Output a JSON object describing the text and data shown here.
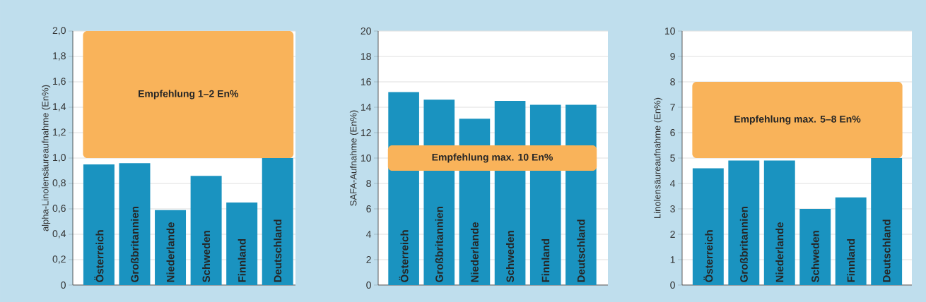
{
  "chart_data": [
    {
      "type": "bar",
      "ylabel": "alpha-Linolensäureaufnahme (En%)",
      "categories": [
        "Österreich",
        "Großbritannien",
        "Niederlande",
        "Schweden",
        "Finnland",
        "Deutschland"
      ],
      "values": [
        0.95,
        0.96,
        0.59,
        0.86,
        0.65,
        1.0
      ],
      "color": "#1a93c0",
      "ylim": [
        0,
        2
      ],
      "yticks": [
        0,
        {
          "value": 0.2,
          "label": "0,2"
        },
        {
          "value": 0.4,
          "label": "0,4"
        },
        {
          "value": 0.6,
          "label": "0,6"
        },
        {
          "value": 0.8,
          "label": "0,8"
        },
        {
          "value": 1.0,
          "label": "1,0"
        },
        {
          "value": 1.2,
          "label": "1,2"
        },
        {
          "value": 1.4,
          "label": "1,4"
        },
        {
          "value": 1.6,
          "label": "1,6"
        },
        {
          "value": 1.8,
          "label": "1,8"
        },
        {
          "value": 2.0,
          "label": "2,0"
        }
      ],
      "grid": "y",
      "bands": [
        {
          "axis": "y",
          "from": 1,
          "to": 2,
          "label": "Empfehlung 1–2 En%",
          "color": "#f9b35a"
        }
      ]
    },
    {
      "type": "bar",
      "ylabel": "SAFA-Aufnahme (En%)",
      "categories": [
        "Österreich",
        "Großbritannien",
        "Niederlande",
        "Schweden",
        "Finnland",
        "Deutschland"
      ],
      "values": [
        15.2,
        14.6,
        13.1,
        14.5,
        14.2,
        14.2
      ],
      "color": "#1a93c0",
      "ylim": [
        0,
        20
      ],
      "yticks": [
        0,
        2,
        4,
        6,
        8,
        10,
        12,
        14,
        16,
        18,
        20
      ],
      "grid": "y",
      "bands": [
        {
          "axis": "y",
          "from": 9,
          "to": 11,
          "label": "Empfehlung max. 10 En%",
          "color": "#f9b35a"
        }
      ]
    },
    {
      "type": "bar",
      "ylabel": "Linolensäureaufnahme (En%)",
      "categories": [
        "Österreich",
        "Großbritannien",
        "Niederlande",
        "Schweden",
        "Finnland",
        "Deutschland"
      ],
      "values": [
        4.6,
        4.9,
        4.9,
        3.0,
        3.45,
        5.0
      ],
      "color": "#1a93c0",
      "ylim": [
        0,
        10
      ],
      "yticks": [
        0,
        1,
        2,
        3,
        4,
        5,
        6,
        7,
        8,
        9,
        10
      ],
      "grid": "y",
      "bands": [
        {
          "axis": "y",
          "from": 5,
          "to": 8,
          "label": "Empfehlung max. 5–8 En%",
          "color": "#f9b35a"
        }
      ]
    }
  ]
}
